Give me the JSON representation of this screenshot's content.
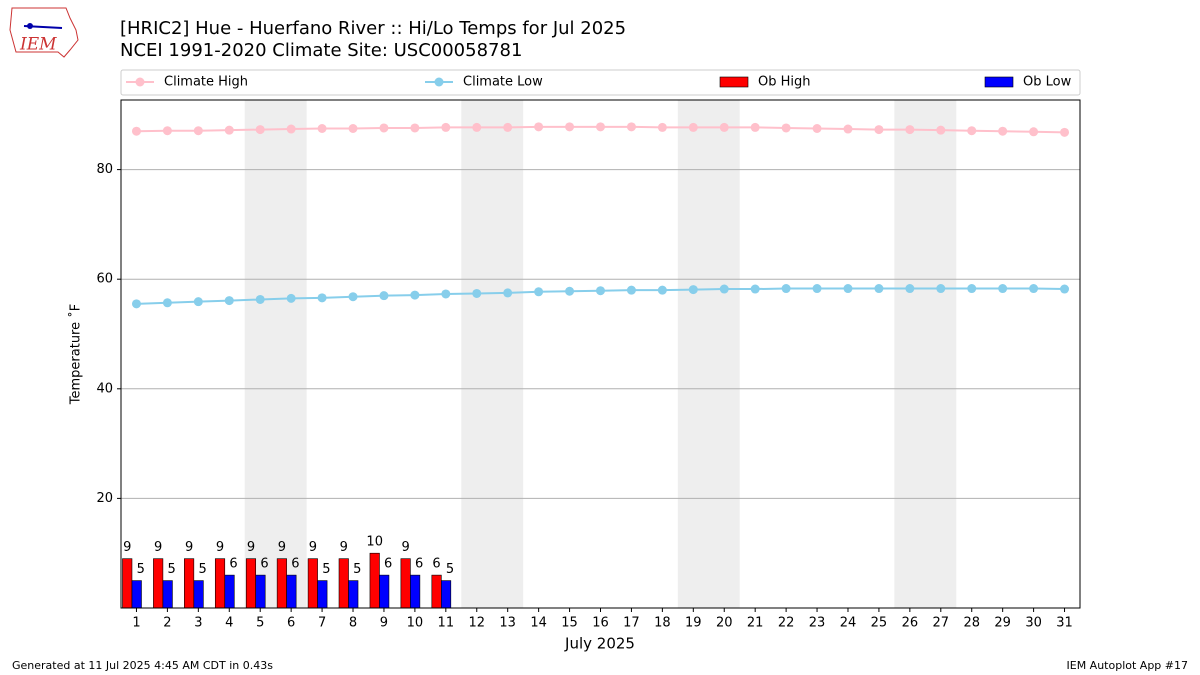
{
  "chart_data": {
    "type": "bar",
    "title": "[HRIC2] Hue - Huerfano River :: Hi/Lo Temps for Jul 2025",
    "subtitle": "NCEI 1991-2020 Climate Site: USC00058781",
    "logo_text": "IEM",
    "xlabel": "July 2025",
    "ylabel": "Temperature ˚F",
    "footer_left": "Generated at 11 Jul 2025 4:45 AM CDT in 0.43s",
    "footer_right": "IEM Autoplot App #17",
    "categories": [
      "1",
      "2",
      "3",
      "4",
      "5",
      "6",
      "7",
      "8",
      "9",
      "10",
      "11",
      "12",
      "13",
      "14",
      "15",
      "16",
      "17",
      "18",
      "19",
      "20",
      "21",
      "22",
      "23",
      "24",
      "25",
      "26",
      "27",
      "28",
      "29",
      "30",
      "31"
    ],
    "shaded_days": [
      [
        5,
        6
      ],
      [
        12,
        13
      ],
      [
        19,
        20
      ],
      [
        26,
        27
      ]
    ],
    "ylim": [
      0,
      92.7
    ],
    "yticks": [
      20,
      40,
      60,
      80
    ],
    "grid": true,
    "legend": "top",
    "series": [
      {
        "name": "Climate High",
        "kind": "line",
        "color": "#ffc0cb",
        "values": [
          87.0,
          87.1,
          87.1,
          87.2,
          87.3,
          87.4,
          87.5,
          87.5,
          87.6,
          87.6,
          87.7,
          87.7,
          87.7,
          87.8,
          87.8,
          87.8,
          87.8,
          87.7,
          87.7,
          87.7,
          87.7,
          87.6,
          87.5,
          87.4,
          87.3,
          87.3,
          87.2,
          87.1,
          87.0,
          86.9,
          86.8
        ]
      },
      {
        "name": "Climate Low",
        "kind": "line",
        "color": "#87ceeb",
        "values": [
          55.5,
          55.7,
          55.9,
          56.1,
          56.3,
          56.5,
          56.6,
          56.8,
          57.0,
          57.1,
          57.3,
          57.4,
          57.5,
          57.7,
          57.8,
          57.9,
          58.0,
          58.0,
          58.1,
          58.2,
          58.2,
          58.3,
          58.3,
          58.3,
          58.3,
          58.3,
          58.3,
          58.3,
          58.3,
          58.3,
          58.2
        ]
      },
      {
        "name": "Ob High",
        "kind": "bar",
        "color": "#ff0000",
        "values": [
          9,
          9,
          9,
          9,
          9,
          9,
          9,
          9,
          10,
          9,
          6,
          null,
          null,
          null,
          null,
          null,
          null,
          null,
          null,
          null,
          null,
          null,
          null,
          null,
          null,
          null,
          null,
          null,
          null,
          null,
          null
        ]
      },
      {
        "name": "Ob Low",
        "kind": "bar",
        "color": "#0000ff",
        "values": [
          5,
          5,
          5,
          6,
          6,
          6,
          5,
          5,
          6,
          6,
          5,
          null,
          null,
          null,
          null,
          null,
          null,
          null,
          null,
          null,
          null,
          null,
          null,
          null,
          null,
          null,
          null,
          null,
          null,
          null,
          null
        ]
      }
    ]
  }
}
